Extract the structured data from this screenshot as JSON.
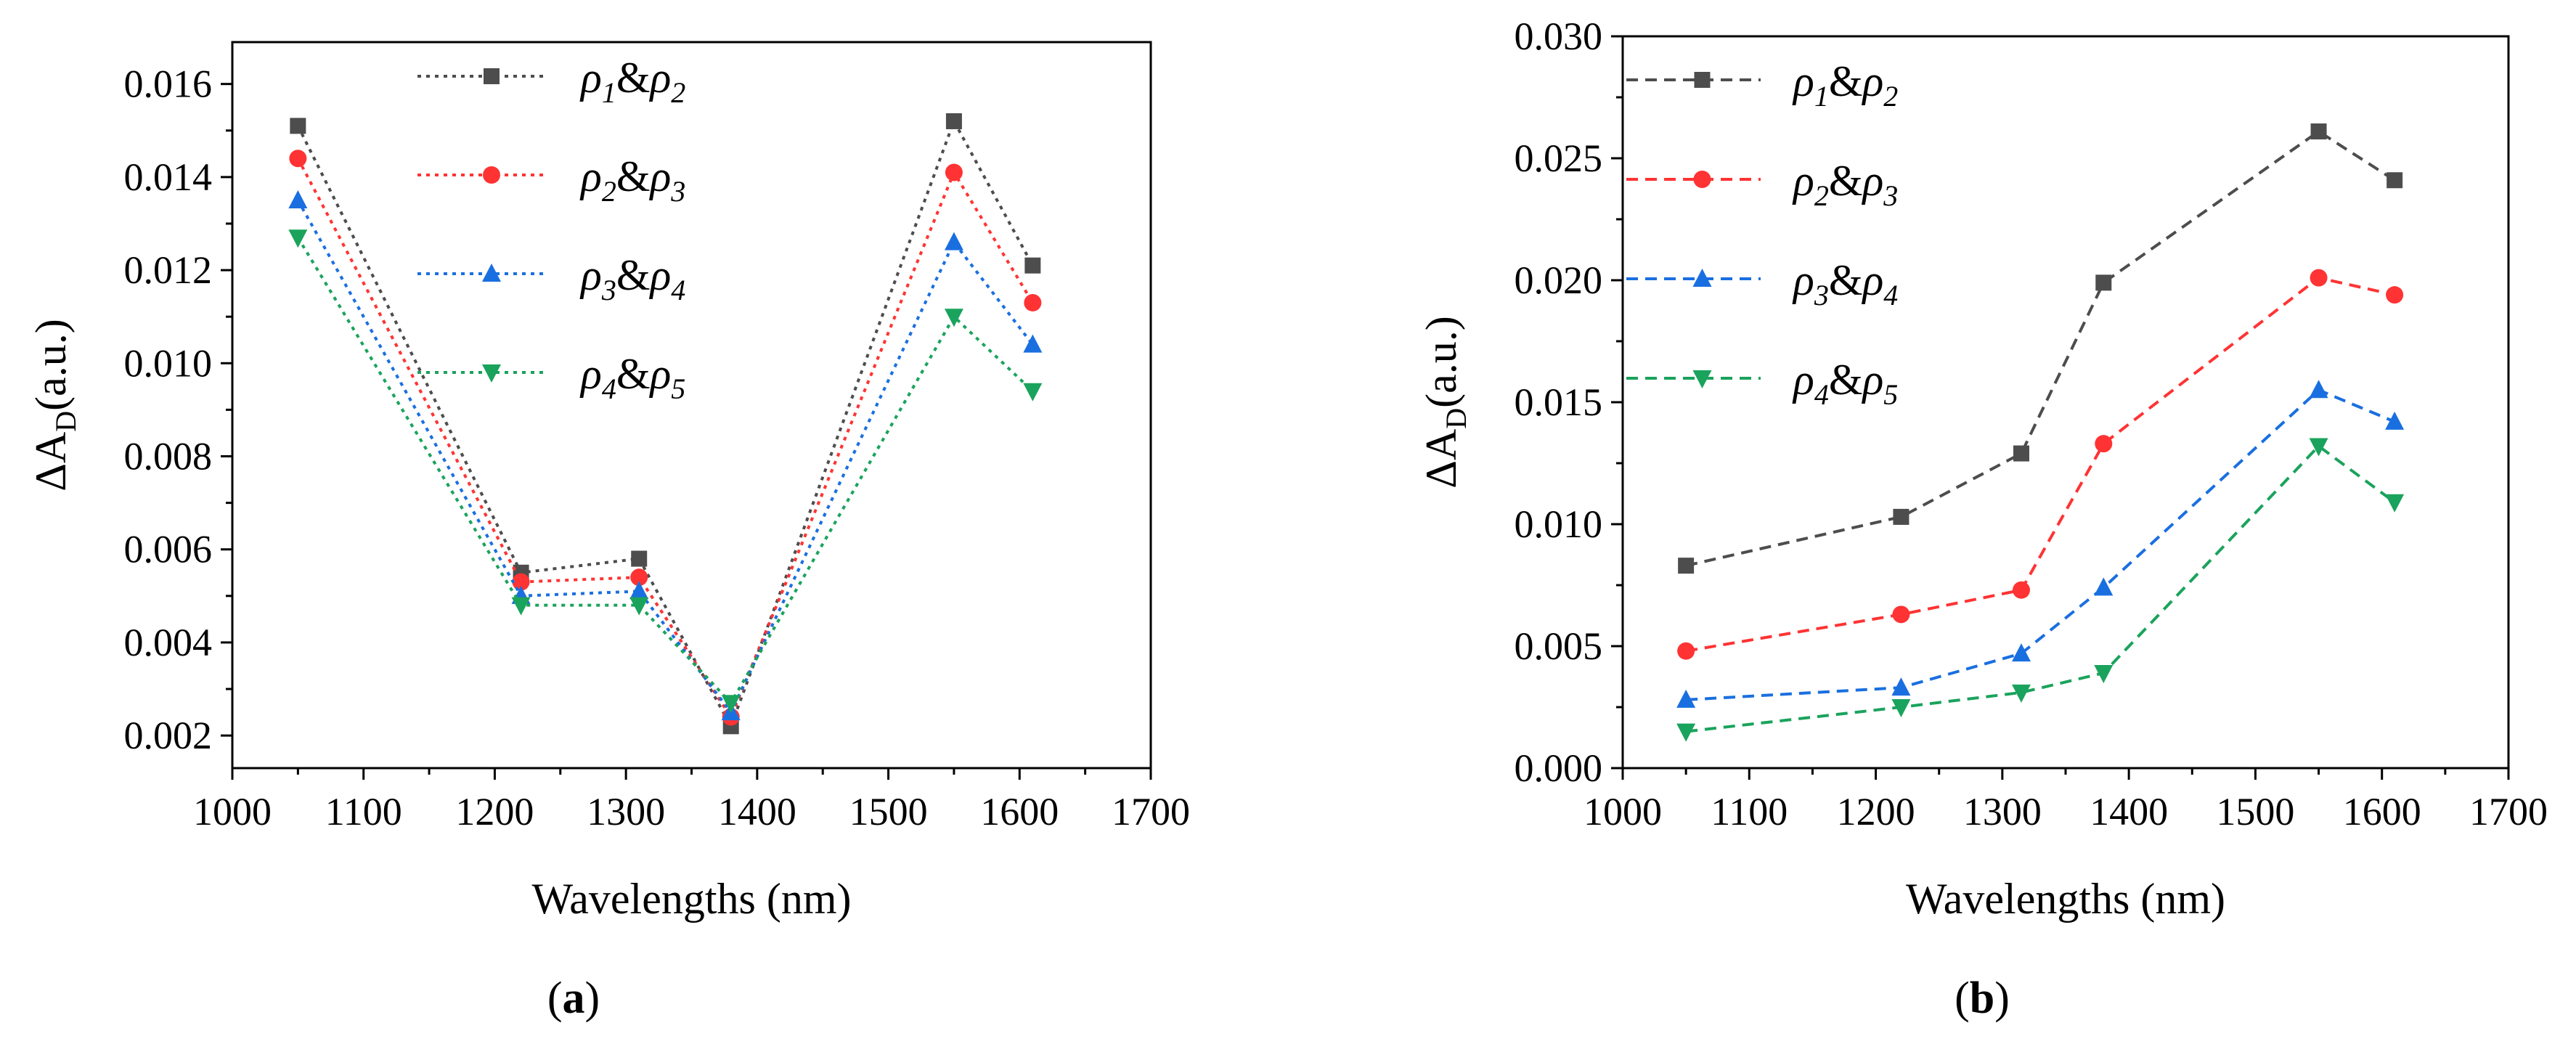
{
  "chart_data": [
    {
      "type": "line",
      "panel_label": "a",
      "panel_label_open": "(",
      "panel_label_close": ")",
      "xlabel": "Wavelengths (nm)",
      "ylabel_main": "ΔA",
      "ylabel_sub": "D",
      "ylabel_unit": "(a.u.)",
      "xlim": [
        1000,
        1700
      ],
      "ylim": [
        0.0013,
        0.0169
      ],
      "xticks": [
        1000,
        1100,
        1200,
        1300,
        1400,
        1500,
        1600,
        1700
      ],
      "yticks": [
        0.002,
        0.004,
        0.006,
        0.008,
        0.01,
        0.012,
        0.014,
        0.016
      ],
      "ytick_labels": [
        "0.002",
        "0.004",
        "0.006",
        "0.008",
        "0.010",
        "0.012",
        "0.014",
        "0.016"
      ],
      "line_style": "dotted",
      "legend_position": "top-center",
      "x": [
        1050,
        1220,
        1310,
        1380,
        1550,
        1610
      ],
      "series": [
        {
          "name": "ρ1&ρ2",
          "a": "ρ",
          "a_sub": "1",
          "amp": "&",
          "b": "ρ",
          "b_sub": "2",
          "color": "#4d4d4d",
          "marker": "square",
          "values": [
            0.0151,
            0.0055,
            0.0058,
            0.0022,
            0.0152,
            0.0121
          ]
        },
        {
          "name": "ρ2&ρ3",
          "a": "ρ",
          "a_sub": "2",
          "amp": "&",
          "b": "ρ",
          "b_sub": "3",
          "color": "#ff3333",
          "marker": "circle",
          "values": [
            0.0144,
            0.0053,
            0.0054,
            0.0024,
            0.0141,
            0.0113
          ]
        },
        {
          "name": "ρ3&ρ4",
          "a": "ρ",
          "a_sub": "3",
          "amp": "&",
          "b": "ρ",
          "b_sub": "4",
          "color": "#1a6fe0",
          "marker": "triangle-up",
          "values": [
            0.0135,
            0.005,
            0.0051,
            0.0025,
            0.0126,
            0.0104
          ]
        },
        {
          "name": "ρ4&ρ5",
          "a": "ρ",
          "a_sub": "4",
          "amp": "&",
          "b": "ρ",
          "b_sub": "5",
          "color": "#1aa35c",
          "marker": "triangle-down",
          "values": [
            0.0127,
            0.0048,
            0.0048,
            0.0027,
            0.011,
            0.0094
          ]
        }
      ]
    },
    {
      "type": "line",
      "panel_label": "b",
      "panel_label_open": "(",
      "panel_label_close": ")",
      "xlabel": "Wavelengths (nm)",
      "ylabel_main": "ΔA",
      "ylabel_sub": "D",
      "ylabel_unit": "(a.u.)",
      "xlim": [
        1000,
        1700
      ],
      "ylim": [
        0.0,
        0.03
      ],
      "xticks": [
        1000,
        1100,
        1200,
        1300,
        1400,
        1500,
        1600,
        1700
      ],
      "yticks": [
        0.0,
        0.005,
        0.01,
        0.015,
        0.02,
        0.025,
        0.03
      ],
      "ytick_labels": [
        "0.000",
        "0.005",
        "0.010",
        "0.015",
        "0.020",
        "0.025",
        "0.030"
      ],
      "line_style": "dashed",
      "legend_position": "top-left",
      "x": [
        1050,
        1220,
        1315,
        1380,
        1550,
        1610
      ],
      "series": [
        {
          "name": "ρ1&ρ2",
          "a": "ρ",
          "a_sub": "1",
          "amp": "&",
          "b": "ρ",
          "b_sub": "2",
          "color": "#4d4d4d",
          "marker": "square",
          "values": [
            0.0083,
            0.0103,
            0.0129,
            0.0199,
            0.0261,
            0.0241
          ]
        },
        {
          "name": "ρ2&ρ3",
          "a": "ρ",
          "a_sub": "2",
          "amp": "&",
          "b": "ρ",
          "b_sub": "3",
          "color": "#ff3333",
          "marker": "circle",
          "values": [
            0.0048,
            0.0063,
            0.0073,
            0.0133,
            0.0201,
            0.0194
          ]
        },
        {
          "name": "ρ3&ρ4",
          "a": "ρ",
          "a_sub": "3",
          "amp": "&",
          "b": "ρ",
          "b_sub": "4",
          "color": "#1a6fe0",
          "marker": "triangle-up",
          "values": [
            0.0028,
            0.0033,
            0.0047,
            0.0074,
            0.0155,
            0.0142
          ]
        },
        {
          "name": "ρ4&ρ5",
          "a": "ρ",
          "a_sub": "4",
          "amp": "&",
          "b": "ρ",
          "b_sub": "5",
          "color": "#1aa35c",
          "marker": "triangle-down",
          "values": [
            0.0015,
            0.0025,
            0.0031,
            0.0039,
            0.0132,
            0.0109
          ]
        }
      ]
    }
  ]
}
